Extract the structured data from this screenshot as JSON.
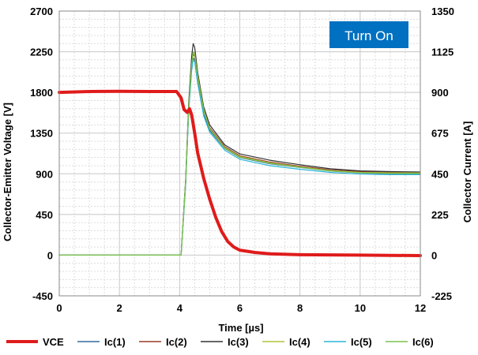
{
  "chart_data": {
    "type": "line",
    "annotation": "Turn On",
    "xlabel": "Time [µs]",
    "ylabel_left": "Collector-Emitter Voltage [V]",
    "ylabel_right": "Collector Current [A]",
    "xlim": [
      0,
      12
    ],
    "ylim_left": [
      -450,
      2700
    ],
    "ylim_right": [
      -225,
      1350
    ],
    "x_ticks": [
      "0",
      "2",
      "4",
      "6",
      "8",
      "10",
      "12"
    ],
    "y_left_ticks": [
      "-450",
      "0",
      "450",
      "900",
      "1350",
      "1800",
      "2250",
      "2700"
    ],
    "y_right_ticks": [
      "-225",
      "0",
      "225",
      "450",
      "675",
      "900",
      "1125",
      "1350"
    ],
    "grid": true,
    "legend_position": "bottom",
    "colors": {
      "VCE": "#e01b1b",
      "Ic(1)": "#2e6b9e",
      "Ic(2)": "#9a3b2a",
      "Ic(3)": "#333333",
      "Ic(4)": "#b4c43a",
      "Ic(5)": "#2bb6d8",
      "Ic(6)": "#7cc24a",
      "badge": "#0070c0"
    },
    "series": [
      {
        "name": "VCE",
        "axis": "left",
        "x": [
          0,
          1,
          2,
          3,
          3.9,
          4.05,
          4.15,
          4.25,
          4.33,
          4.4,
          4.5,
          4.6,
          4.8,
          5.0,
          5.2,
          5.4,
          5.6,
          5.8,
          6.0,
          6.5,
          7.0,
          8.0,
          10.0,
          12.0
        ],
        "values": [
          1800,
          1810,
          1812,
          1810,
          1810,
          1740,
          1610,
          1580,
          1620,
          1550,
          1350,
          1130,
          850,
          620,
          420,
          260,
          150,
          90,
          55,
          30,
          15,
          5,
          0,
          -5
        ]
      },
      {
        "name": "Ic(1)",
        "axis": "right",
        "x": [
          0,
          3.9,
          4.05,
          4.2,
          4.3,
          4.4,
          4.45,
          4.5,
          4.6,
          4.8,
          5.0,
          5.5,
          6.0,
          7.0,
          8.0,
          9.0,
          10.0,
          11.0,
          12.0
        ],
        "values": [
          0,
          0,
          0,
          400,
          800,
          1040,
          1090,
          1080,
          960,
          780,
          690,
          590,
          540,
          505,
          485,
          465,
          455,
          450,
          450
        ]
      },
      {
        "name": "Ic(2)",
        "axis": "right",
        "x": [
          0,
          3.9,
          4.05,
          4.2,
          4.3,
          4.4,
          4.45,
          4.5,
          4.6,
          4.8,
          5.0,
          5.5,
          6.0,
          7.0,
          8.0,
          9.0,
          10.0,
          11.0,
          12.0
        ],
        "values": [
          0,
          0,
          0,
          410,
          820,
          1060,
          1110,
          1100,
          980,
          800,
          705,
          600,
          550,
          515,
          492,
          472,
          462,
          458,
          458
        ]
      },
      {
        "name": "Ic(3)",
        "axis": "right",
        "x": [
          0,
          3.9,
          4.05,
          4.2,
          4.3,
          4.4,
          4.45,
          4.5,
          4.6,
          4.8,
          5.0,
          5.5,
          6.0,
          7.0,
          8.0,
          9.0,
          10.0,
          11.0,
          12.0
        ],
        "values": [
          0,
          0,
          0,
          420,
          840,
          1100,
          1170,
          1150,
          1010,
          820,
          720,
          610,
          560,
          525,
          500,
          478,
          466,
          462,
          460
        ]
      },
      {
        "name": "Ic(4)",
        "axis": "right",
        "x": [
          0,
          3.9,
          4.05,
          4.2,
          4.3,
          4.4,
          4.45,
          4.5,
          4.6,
          4.8,
          5.0,
          5.5,
          6.0,
          7.0,
          8.0,
          9.0,
          10.0,
          11.0,
          12.0
        ],
        "values": [
          0,
          0,
          0,
          400,
          810,
          1050,
          1120,
          1110,
          990,
          805,
          700,
          595,
          545,
          510,
          488,
          468,
          458,
          455,
          455
        ]
      },
      {
        "name": "Ic(5)",
        "axis": "right",
        "x": [
          0,
          3.9,
          4.05,
          4.2,
          4.3,
          4.4,
          4.45,
          4.5,
          4.6,
          4.8,
          5.0,
          5.5,
          6.0,
          7.0,
          8.0,
          9.0,
          10.0,
          11.0,
          12.0
        ],
        "values": [
          0,
          0,
          0,
          390,
          790,
          1020,
          1080,
          1070,
          950,
          770,
          680,
          580,
          530,
          495,
          475,
          458,
          448,
          445,
          445
        ]
      },
      {
        "name": "Ic(6)",
        "axis": "right",
        "x": [
          0,
          3.9,
          4.05,
          4.2,
          4.3,
          4.4,
          4.45,
          4.5,
          4.6,
          4.8,
          5.0,
          5.5,
          6.0,
          7.0,
          8.0,
          9.0,
          10.0,
          11.0,
          12.0
        ],
        "values": [
          0,
          0,
          0,
          405,
          815,
          1055,
          1125,
          1115,
          985,
          800,
          698,
          592,
          542,
          508,
          486,
          466,
          456,
          452,
          452
        ]
      }
    ]
  }
}
